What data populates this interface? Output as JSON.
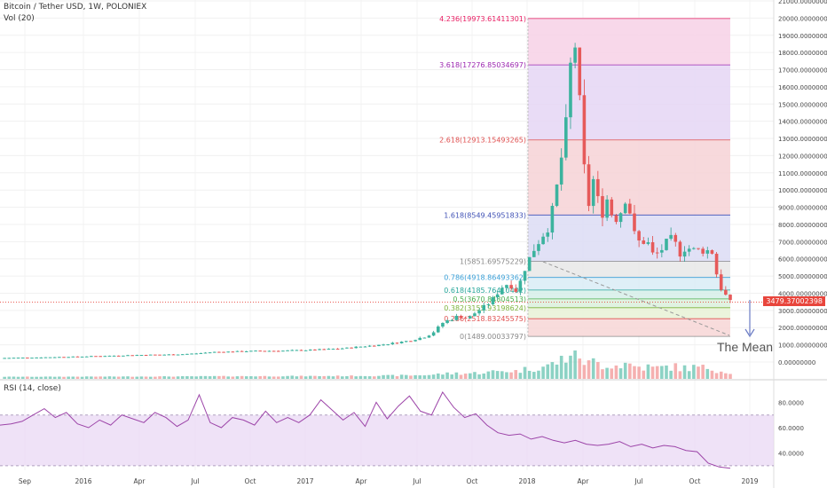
{
  "header": {
    "symbol_line": "Bitcoin / Tether USD, 1W, POLONIEX",
    "volume_label": "Vol (20)",
    "rsi_label": "RSI (14, close)"
  },
  "price_label": "3479.37002398",
  "annotation": "The Mean",
  "colors": {
    "up": "#6fc7b5",
    "down": "#f29c9c",
    "rsi_line": "#9c44a8",
    "rsi_band": "#e9d8f4"
  },
  "chart_data": [
    {
      "type": "candlestick",
      "title": "Bitcoin / Tether USD, 1W, POLONIEX",
      "x_ticks": [
        "Sep",
        "2016",
        "Apr",
        "Jul",
        "Oct",
        "2017",
        "Apr",
        "Jul",
        "Oct",
        "2018",
        "Apr",
        "Jul",
        "Oct",
        "2019"
      ],
      "y_ticks": [
        "21000.00000000",
        "20000.00000000",
        "19000.00000000",
        "18000.00000000",
        "17000.00000000",
        "16000.00000000",
        "15000.00000000",
        "14000.00000000",
        "13000.00000000",
        "12000.00000000",
        "11000.00000000",
        "10000.00000000",
        "9000.00000000",
        "8000.00000000",
        "7000.00000000",
        "6000.00000000",
        "5000.00000000",
        "4000.00000000",
        "3000.00000000",
        "2000.00000000",
        "1000.00000000",
        "0.00000000"
      ],
      "ylim": [
        0,
        21000
      ],
      "last_close": 3479.37,
      "close_path": [
        [
          0,
          230
        ],
        [
          10,
          250
        ],
        [
          20,
          260
        ],
        [
          30,
          280
        ],
        [
          40,
          300
        ],
        [
          50,
          320
        ],
        [
          60,
          350
        ],
        [
          70,
          370
        ],
        [
          80,
          400
        ],
        [
          90,
          420
        ],
        [
          100,
          430
        ],
        [
          110,
          450
        ],
        [
          120,
          500
        ],
        [
          130,
          580
        ],
        [
          140,
          600
        ],
        [
          150,
          630
        ],
        [
          160,
          650
        ],
        [
          170,
          650
        ],
        [
          180,
          680
        ],
        [
          190,
          700
        ],
        [
          200,
          750
        ],
        [
          210,
          800
        ],
        [
          220,
          900
        ],
        [
          230,
          980
        ],
        [
          240,
          1100
        ],
        [
          250,
          1250
        ],
        [
          260,
          1500
        ],
        [
          265,
          1800
        ],
        [
          270,
          2300
        ],
        [
          275,
          2500
        ],
        [
          280,
          2700
        ],
        [
          285,
          2500
        ],
        [
          290,
          2900
        ],
        [
          295,
          3200
        ],
        [
          300,
          3600
        ],
        [
          305,
          4300
        ],
        [
          310,
          4600
        ],
        [
          315,
          4100
        ],
        [
          320,
          5500
        ],
        [
          325,
          6500
        ],
        [
          330,
          7300
        ],
        [
          335,
          8000
        ],
        [
          340,
          10500
        ],
        [
          345,
          13800
        ],
        [
          348,
          17600
        ],
        [
          350,
          19000
        ],
        [
          352,
          16500
        ],
        [
          354,
          14000
        ],
        [
          356,
          11200
        ],
        [
          358,
          8800
        ],
        [
          362,
          10800
        ],
        [
          366,
          8400
        ],
        [
          370,
          9500
        ],
        [
          374,
          8200
        ],
        [
          378,
          8700
        ],
        [
          382,
          9800
        ],
        [
          386,
          7500
        ],
        [
          390,
          6900
        ],
        [
          394,
          7100
        ],
        [
          398,
          6200
        ],
        [
          402,
          6400
        ],
        [
          406,
          6900
        ],
        [
          410,
          7200
        ],
        [
          414,
          6300
        ],
        [
          418,
          6700
        ],
        [
          422,
          6500
        ],
        [
          426,
          6500
        ],
        [
          430,
          6500
        ],
        [
          434,
          6400
        ],
        [
          438,
          4500
        ],
        [
          442,
          3900
        ],
        [
          445,
          3479
        ]
      ],
      "fibonacci": [
        {
          "ratio": "0",
          "value": 1489.00033797,
          "label": "0(1489.00033797)",
          "color": "#888888"
        },
        {
          "ratio": "0.236",
          "value": 2518.83245575,
          "label": "0.236(2518.83245575)",
          "color": "#e05050"
        },
        {
          "ratio": "0.382",
          "value": 3155.93198624,
          "label": "0.382(3155.93198624)",
          "color": "#7db33c"
        },
        {
          "ratio": "0.5",
          "value": 3670.84804513,
          "label": "0.5(3670.84804513)",
          "color": "#4caf50"
        },
        {
          "ratio": "0.618",
          "value": 4185.76410402,
          "label": "0.618(4185.76410402)",
          "color": "#26a69a"
        },
        {
          "ratio": "0.786",
          "value": 4918.86493362,
          "label": "0.786(4918.86493362)",
          "color": "#3aa0d8"
        },
        {
          "ratio": "1",
          "value": 5851.69575229,
          "label": "1(5851.69575229)",
          "color": "#888888"
        },
        {
          "ratio": "1.618",
          "value": 8549.45951833,
          "label": "1.618(8549.45951833)",
          "color": "#3f51b5"
        },
        {
          "ratio": "2.618",
          "value": 12913.15493265,
          "label": "2.618(12913.15493265)",
          "color": "#e05050"
        },
        {
          "ratio": "3.618",
          "value": 17276.85034697,
          "label": "3.618(17276.85034697)",
          "color": "#9c27b0"
        },
        {
          "ratio": "4.236",
          "value": 19973.61411301,
          "label": "4.236(19973.61411301)",
          "color": "#e91e63"
        }
      ]
    },
    {
      "type": "line",
      "title": "RSI (14, close)",
      "y_ticks": [
        "80.0000",
        "60.0000",
        "40.0000"
      ],
      "ylim": [
        25,
        95
      ],
      "band": [
        30,
        70
      ],
      "values": [
        62,
        63,
        65,
        70,
        75,
        68,
        72,
        63,
        60,
        66,
        62,
        70,
        67,
        64,
        72,
        68,
        61,
        66,
        86,
        64,
        60,
        68,
        66,
        62,
        73,
        64,
        68,
        64,
        70,
        82,
        74,
        66,
        72,
        61,
        80,
        67,
        77,
        85,
        73,
        70,
        88,
        76,
        68,
        71,
        62,
        56,
        54,
        55,
        51,
        53,
        50,
        48,
        50,
        47,
        46,
        47,
        49,
        45,
        47,
        44,
        46,
        45,
        42,
        41,
        32,
        29,
        28
      ]
    }
  ]
}
